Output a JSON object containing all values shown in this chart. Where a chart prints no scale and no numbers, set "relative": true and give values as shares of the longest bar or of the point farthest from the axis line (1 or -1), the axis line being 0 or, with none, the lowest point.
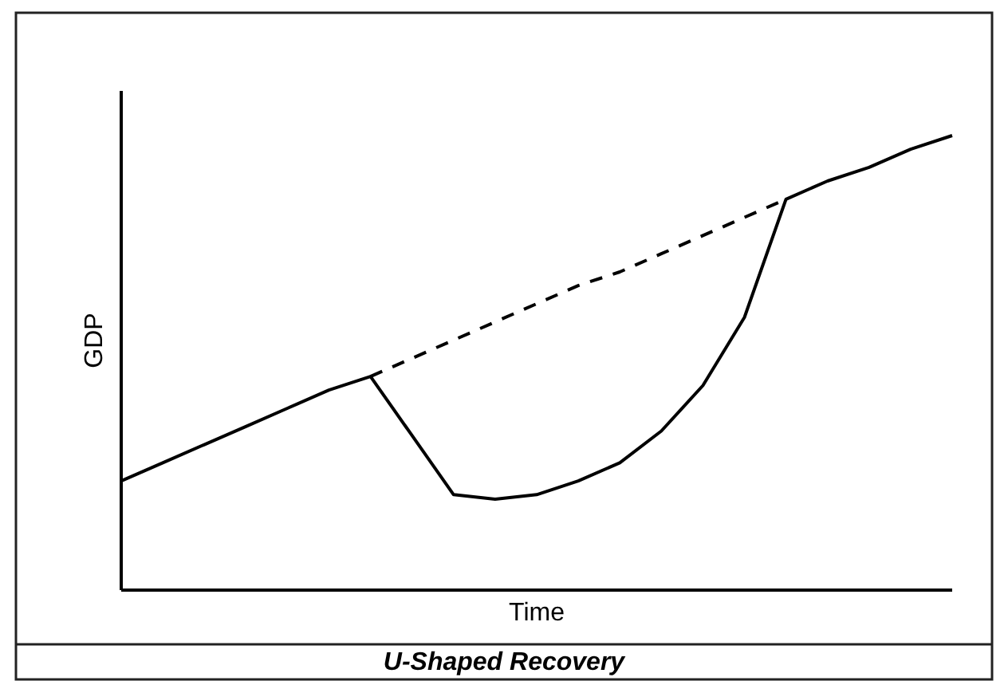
{
  "chart_data": {
    "type": "line",
    "title": "U-Shaped Recovery",
    "xlabel": "Time",
    "ylabel": "GDP",
    "relative": true,
    "categories": [
      null,
      null,
      null,
      null,
      null,
      null,
      null,
      null,
      null,
      null,
      null,
      null,
      null,
      null,
      null,
      null,
      null,
      null,
      null,
      null,
      null
    ],
    "series": [
      {
        "color": "#000000",
        "line_style": "solid",
        "values": [
          0.24,
          0.28,
          0.32,
          0.36,
          0.4,
          0.44,
          0.47,
          0.34,
          0.21,
          0.2,
          0.21,
          0.24,
          0.28,
          0.35,
          0.45,
          0.6,
          0.86,
          0.9,
          0.93,
          0.97,
          1
        ]
      },
      {
        "color": "#000000",
        "line_style": "dashed",
        "values": [
          null,
          null,
          null,
          null,
          null,
          null,
          0.47,
          0.51,
          0.55,
          0.59,
          0.63,
          0.67,
          0.7,
          0.74,
          0.78,
          0.82,
          0.86,
          null,
          null,
          null,
          null
        ]
      }
    ]
  }
}
